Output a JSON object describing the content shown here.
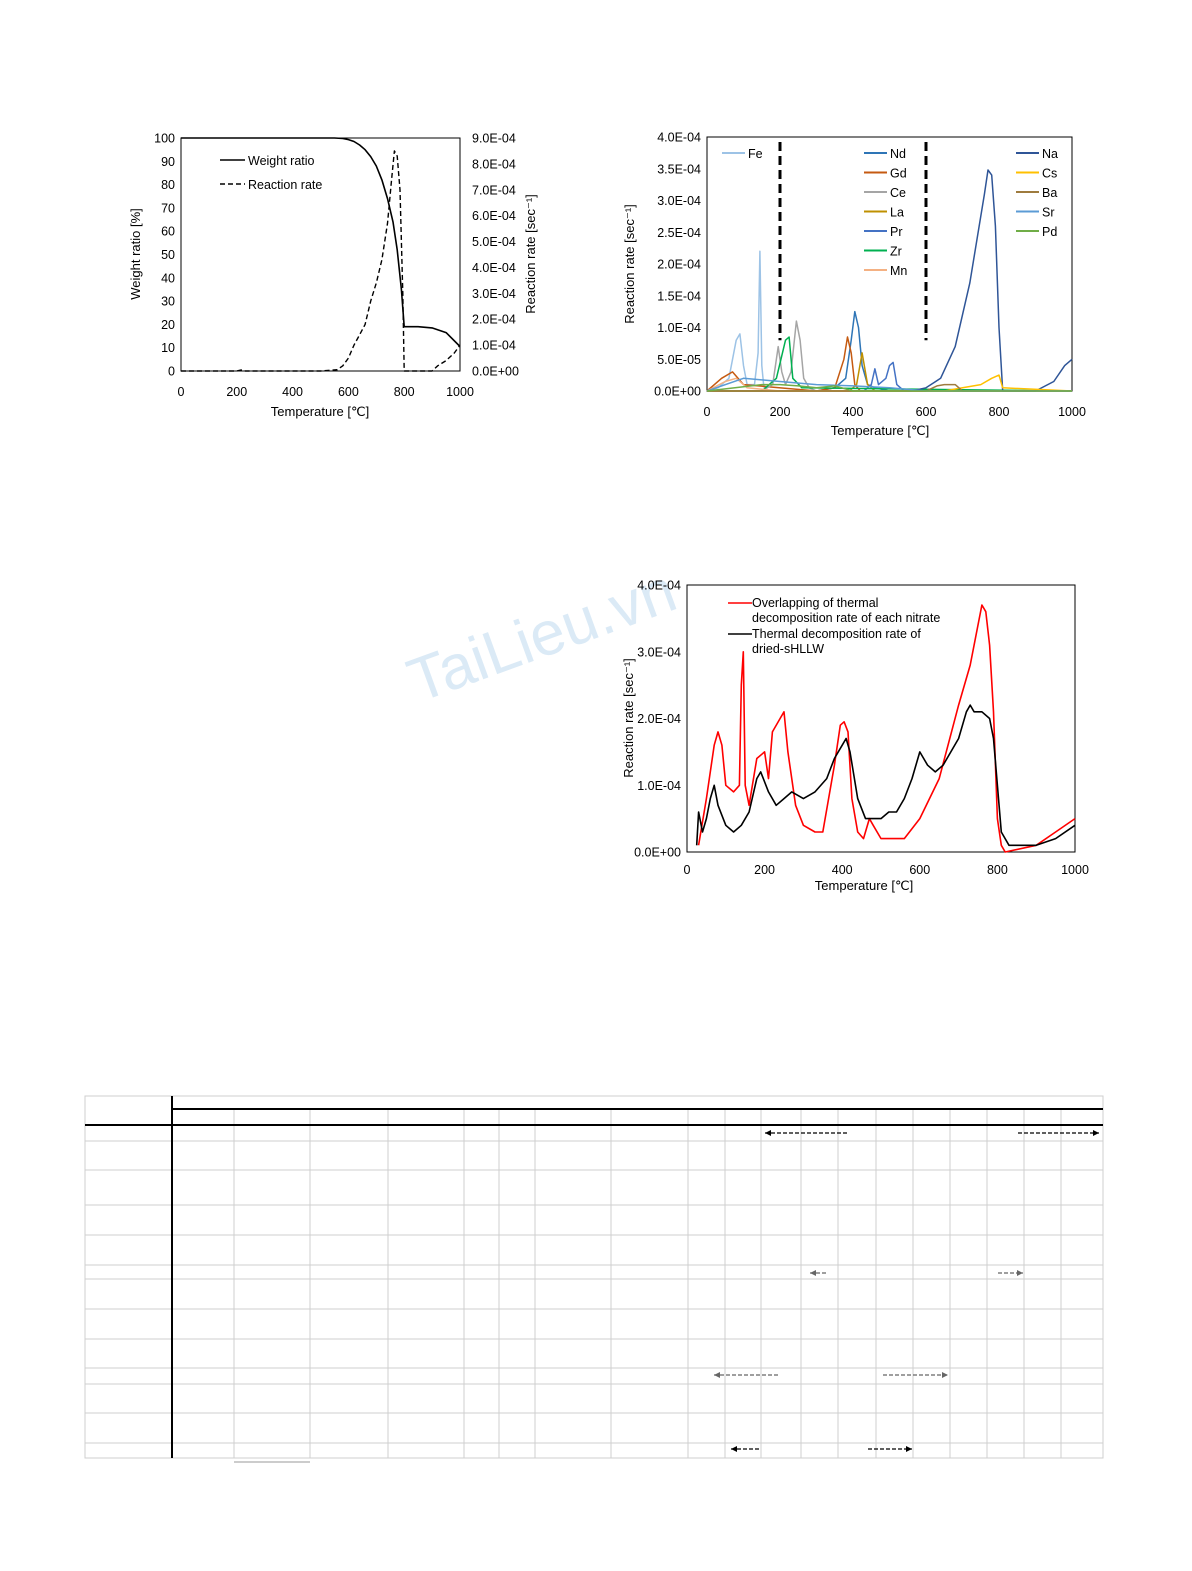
{
  "watermark": {
    "text": "TaiLieu.vn"
  },
  "chart_data": [
    {
      "type": "line",
      "xlabel": "Temperature [℃]",
      "ylabel": "Weight ratio [%]",
      "y2label": "Reaction rate [sec⁻¹]",
      "xlim": [
        0,
        1000
      ],
      "ylim": [
        0,
        100
      ],
      "y2lim": [
        0,
        0.0009
      ],
      "xticks": [
        "0",
        "200",
        "400",
        "600",
        "800",
        "1000"
      ],
      "yticks": [
        "0",
        "10",
        "20",
        "30",
        "40",
        "50",
        "60",
        "70",
        "80",
        "90",
        "100"
      ],
      "y2ticks": [
        "0.0E+00",
        "1.0E-04",
        "2.0E-04",
        "3.0E-04",
        "4.0E-04",
        "5.0E-04",
        "6.0E-04",
        "7.0E-04",
        "8.0E-04",
        "9.0E-04"
      ],
      "legend_position": "top-left",
      "series": [
        {
          "name": "Weight ratio",
          "axis": "left",
          "style": "solid",
          "color": "#000000",
          "x": [
            0,
            100,
            200,
            300,
            400,
            500,
            550,
            580,
            600,
            620,
            640,
            660,
            680,
            700,
            720,
            740,
            760,
            775,
            790,
            800,
            850,
            900,
            950,
            1000
          ],
          "y": [
            100,
            100,
            100,
            100,
            100,
            100,
            100,
            99.8,
            99.3,
            98.5,
            97,
            95,
            92,
            88,
            82,
            74,
            64,
            52,
            35,
            19,
            19,
            18.5,
            16.5,
            10.5
          ]
        },
        {
          "name": "Reaction rate",
          "axis": "right",
          "style": "dashed",
          "color": "#000000",
          "x": [
            0,
            100,
            200,
            220,
            230,
            300,
            400,
            500,
            560,
            580,
            600,
            620,
            640,
            660,
            680,
            700,
            720,
            740,
            755,
            765,
            775,
            785,
            795,
            800,
            850,
            900,
            920,
            950,
            980,
            1000
          ],
          "y": [
            0,
            0,
            0,
            5e-06,
            0,
            0,
            0,
            0,
            5e-06,
            2e-05,
            5e-05,
            0.0001,
            0.00014,
            0.00018,
            0.00027,
            0.00034,
            0.00043,
            0.00057,
            0.00074,
            0.00085,
            0.00083,
            0.0007,
            0.0003,
            0,
            0,
            0,
            2e-05,
            4e-05,
            7e-05,
            0.0001
          ]
        }
      ]
    },
    {
      "type": "line",
      "xlabel": "Temperature [℃]",
      "ylabel": "Reaction rate [sec⁻¹]",
      "xlim": [
        0,
        1000
      ],
      "ylim": [
        0,
        0.0004
      ],
      "xticks": [
        "0",
        "200",
        "400",
        "600",
        "800",
        "1000"
      ],
      "yticks": [
        "0.0E+00",
        "5.0E-05",
        "1.0E-04",
        "1.5E-04",
        "2.0E-04",
        "2.5E-04",
        "3.0E-04",
        "3.5E-04",
        "4.0E-04"
      ],
      "divider_lines_x": [
        200,
        600
      ],
      "legend_groups": [
        [
          "Fe"
        ],
        [
          "Nd",
          "Gd",
          "Ce",
          "La",
          "Pr",
          "Zr",
          "Mn"
        ],
        [
          "Na",
          "Cs",
          "Ba",
          "Sr",
          "Pd"
        ]
      ],
      "series": [
        {
          "name": "Fe",
          "color": "#9dc3e6",
          "x": [
            0,
            30,
            60,
            80,
            90,
            100,
            110,
            120,
            130,
            140,
            145,
            150,
            155,
            160,
            200,
            300
          ],
          "y": [
            0,
            5e-06,
            2e-05,
            8e-05,
            9e-05,
            4e-05,
            1e-05,
            1e-05,
            1e-05,
            6e-05,
            0.00022,
            4e-05,
            1e-05,
            0,
            0,
            0
          ]
        },
        {
          "name": "Nd",
          "color": "#2e75b6",
          "x": [
            0,
            300,
            350,
            380,
            395,
            405,
            415,
            425,
            440,
            460,
            500,
            1000
          ],
          "y": [
            0,
            0,
            5e-06,
            2e-05,
            8e-05,
            0.000125,
            0.0001,
            4e-05,
            1e-05,
            5e-06,
            0,
            0
          ]
        },
        {
          "name": "Gd",
          "color": "#c55a11",
          "x": [
            0,
            40,
            70,
            100,
            300,
            350,
            375,
            385,
            395,
            405,
            420,
            1000
          ],
          "y": [
            0,
            2e-05,
            3e-05,
            1e-05,
            0,
            5e-06,
            5e-05,
            8.5e-05,
            6e-05,
            1e-05,
            0,
            0
          ]
        },
        {
          "name": "Ce",
          "color": "#a5a5a5",
          "x": [
            0,
            150,
            180,
            195,
            205,
            215,
            230,
            245,
            255,
            265,
            280,
            300,
            1000
          ],
          "y": [
            0,
            0,
            1e-05,
            7e-05,
            3e-05,
            1e-05,
            3e-05,
            0.00011,
            8e-05,
            2e-05,
            5e-06,
            0,
            0
          ]
        },
        {
          "name": "La",
          "color": "#bf9000",
          "x": [
            0,
            390,
            410,
            425,
            440,
            460,
            1000
          ],
          "y": [
            0,
            0,
            1e-05,
            6e-05,
            1e-05,
            0,
            0
          ]
        },
        {
          "name": "Pr",
          "color": "#4472c4",
          "x": [
            0,
            430,
            450,
            460,
            470,
            490,
            500,
            510,
            520,
            540,
            1000
          ],
          "y": [
            0,
            0,
            1e-05,
            3.5e-05,
            1e-05,
            2e-05,
            4e-05,
            4.5e-05,
            1e-05,
            0,
            0
          ]
        },
        {
          "name": "Zr",
          "color": "#00b050",
          "x": [
            0,
            150,
            190,
            215,
            225,
            235,
            260,
            1000
          ],
          "y": [
            0,
            0,
            2e-05,
            8e-05,
            8.5e-05,
            2e-05,
            5e-06,
            0
          ]
        },
        {
          "name": "Mn",
          "color": "#f4b183",
          "x": [
            0,
            50,
            80,
            100,
            110,
            200,
            1000
          ],
          "y": [
            0,
            1.5e-05,
            2e-05,
            1e-05,
            5e-06,
            0,
            0
          ]
        },
        {
          "name": "Na",
          "color": "#2f5597",
          "x": [
            0,
            560,
            600,
            640,
            680,
            700,
            720,
            740,
            760,
            770,
            780,
            790,
            800,
            810,
            900,
            950,
            980,
            1000
          ],
          "y": [
            0,
            0,
            5e-06,
            2e-05,
            7e-05,
            0.00012,
            0.00017,
            0.00024,
            0.00031,
            0.000348,
            0.00034,
            0.00026,
            0.0001,
            0,
            0,
            1.5e-05,
            4e-05,
            5e-05
          ]
        },
        {
          "name": "Cs",
          "color": "#ffc000",
          "x": [
            0,
            650,
            700,
            750,
            780,
            800,
            810,
            1000
          ],
          "y": [
            0,
            0,
            5e-06,
            1e-05,
            2e-05,
            2.5e-05,
            5e-06,
            0
          ]
        },
        {
          "name": "Ba",
          "color": "#9e7b3e",
          "x": [
            0,
            600,
            630,
            650,
            680,
            700,
            1000
          ],
          "y": [
            0,
            0,
            8e-06,
            1e-05,
            1e-05,
            0,
            0
          ]
        },
        {
          "name": "Sr",
          "color": "#5b9bd5",
          "x": [
            0,
            100,
            200,
            300,
            400,
            500,
            600,
            1000
          ],
          "y": [
            0,
            2e-05,
            1.5e-05,
            1e-05,
            8e-06,
            5e-06,
            0,
            0
          ]
        },
        {
          "name": "Pd",
          "color": "#70ad47",
          "x": [
            0,
            150,
            200,
            250,
            300,
            350,
            400,
            1000
          ],
          "y": [
            0,
            1e-05,
            1e-05,
            8e-06,
            5e-06,
            8e-06,
            0,
            0
          ]
        }
      ]
    },
    {
      "type": "line",
      "xlabel": "Temperature [℃]",
      "ylabel": "Reaction rate [sec⁻¹]",
      "xlim": [
        0,
        1000
      ],
      "ylim": [
        0,
        0.0004
      ],
      "xticks": [
        "0",
        "200",
        "400",
        "600",
        "800",
        "1000"
      ],
      "yticks": [
        "0.0E+00",
        "1.0E-04",
        "2.0E-04",
        "3.0E-04",
        "4.0E-04"
      ],
      "legend_position": "top-left",
      "series": [
        {
          "name": "Overlapping of thermal decomposition rate of each nitrate",
          "color": "#ff0000",
          "x": [
            30,
            50,
            70,
            80,
            90,
            100,
            120,
            135,
            140,
            145,
            150,
            160,
            180,
            200,
            210,
            220,
            240,
            250,
            260,
            280,
            300,
            330,
            350,
            380,
            395,
            405,
            415,
            425,
            440,
            455,
            470,
            480,
            500,
            520,
            560,
            600,
            650,
            700,
            730,
            750,
            760,
            770,
            780,
            790,
            800,
            810,
            820,
            900,
            950,
            1000
          ],
          "y": [
            1e-05,
            8e-05,
            0.00016,
            0.00018,
            0.00016,
            0.0001,
            9e-05,
            0.0001,
            0.00025,
            0.0003,
            0.0001,
            7e-05,
            0.00014,
            0.00015,
            0.00011,
            0.00018,
            0.0002,
            0.00021,
            0.00015,
            7e-05,
            4e-05,
            3e-05,
            3e-05,
            0.00013,
            0.00019,
            0.000195,
            0.00018,
            8e-05,
            3e-05,
            2e-05,
            5e-05,
            4e-05,
            2e-05,
            2e-05,
            2e-05,
            5e-05,
            0.00011,
            0.00022,
            0.00028,
            0.00034,
            0.00037,
            0.00036,
            0.00031,
            0.00021,
            5e-05,
            1e-05,
            0,
            1e-05,
            3e-05,
            5e-05
          ]
        },
        {
          "name": "Thermal decomposition rate of dried-sHLLW",
          "color": "#000000",
          "x": [
            25,
            30,
            40,
            50,
            60,
            70,
            80,
            100,
            120,
            140,
            160,
            180,
            190,
            210,
            230,
            250,
            270,
            300,
            330,
            360,
            380,
            400,
            410,
            420,
            440,
            460,
            480,
            500,
            520,
            540,
            560,
            580,
            600,
            620,
            640,
            660,
            700,
            720,
            730,
            740,
            760,
            780,
            790,
            800,
            810,
            830,
            900,
            950,
            1000
          ],
          "y": [
            1e-05,
            6e-05,
            3e-05,
            5e-05,
            8e-05,
            0.0001,
            7e-05,
            4e-05,
            3e-05,
            4e-05,
            6e-05,
            0.00011,
            0.00012,
            9e-05,
            7e-05,
            8e-05,
            9e-05,
            8e-05,
            9e-05,
            0.00011,
            0.00014,
            0.00016,
            0.00017,
            0.00015,
            8e-05,
            5e-05,
            5e-05,
            5e-05,
            6e-05,
            6e-05,
            8e-05,
            0.00011,
            0.00015,
            0.00013,
            0.00012,
            0.00013,
            0.00017,
            0.00021,
            0.00022,
            0.00021,
            0.00021,
            0.0002,
            0.00017,
            0.0001,
            3e-05,
            1e-05,
            1e-05,
            2e-05,
            4e-05
          ]
        }
      ]
    }
  ]
}
